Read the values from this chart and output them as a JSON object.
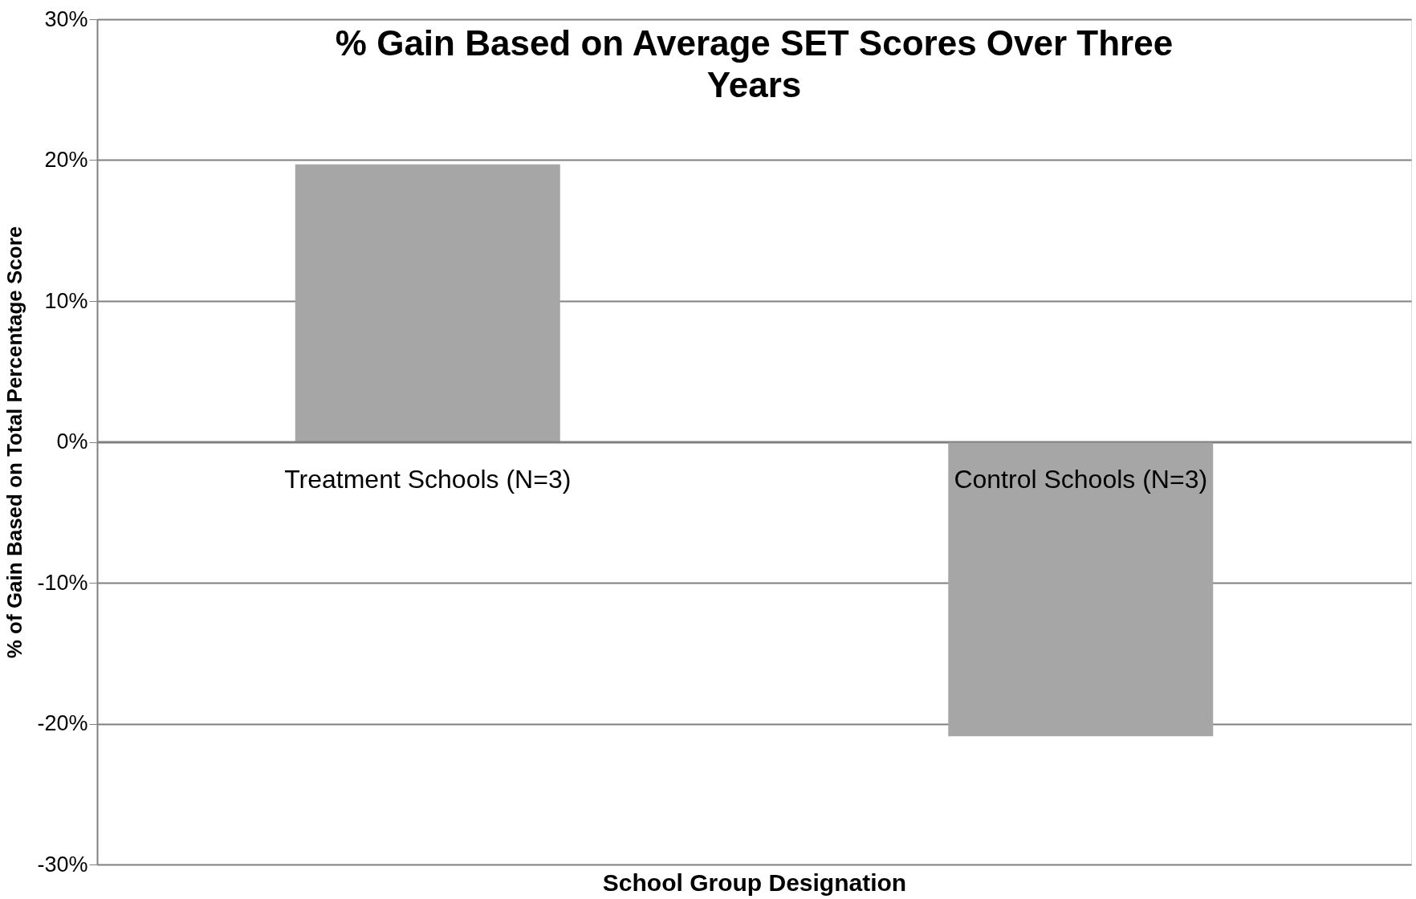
{
  "chart_data": {
    "type": "bar",
    "title": "% Gain Based on Average SET Scores Over Three Years",
    "xlabel": "School Group Designation",
    "ylabel": "% of Gain Based on  Total Percentage Score",
    "categories": [
      "Treatment Schools (N=3)",
      "Control Schools (N=3)"
    ],
    "values": [
      19.7,
      -20.9
    ],
    "color": "#a6a6a6",
    "ylim": [
      -30,
      30
    ],
    "yticks": [
      {
        "value": -30,
        "label": "-30%"
      },
      {
        "value": -20,
        "label": "-20%"
      },
      {
        "value": -10,
        "label": "-10%"
      },
      {
        "value": 0,
        "label": "0%"
      },
      {
        "value": 10,
        "label": "10%"
      },
      {
        "value": 20,
        "label": "20%"
      },
      {
        "value": 30,
        "label": "30%"
      }
    ],
    "grid": "y"
  }
}
